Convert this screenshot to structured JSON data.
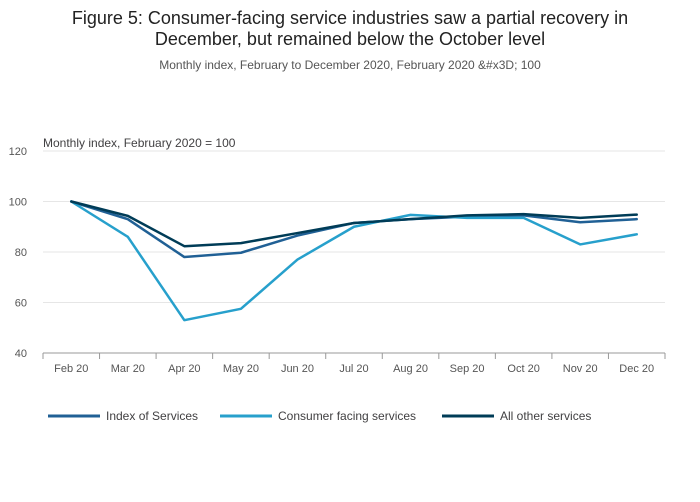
{
  "title_line1": "Figure 5: Consumer-facing service industries saw a partial recovery in",
  "title_line2": "December, but remained below the October level",
  "subtitle": "Monthly index, February to December 2020, February 2020 &#x3D; 100",
  "chart_data": {
    "type": "line",
    "ylabel": "Monthly index, February 2020 = 100",
    "xlabel": "",
    "ylim": [
      40,
      120
    ],
    "yticks": [
      40,
      60,
      80,
      100,
      120
    ],
    "grid": true,
    "legend_position": "bottom",
    "x": [
      "Feb 20",
      "Mar 20",
      "Apr 20",
      "May 20",
      "Jun 20",
      "Jul 20",
      "Aug 20",
      "Sep 20",
      "Oct 20",
      "Nov 20",
      "Dec 20"
    ],
    "series": [
      {
        "name": "Index of Services",
        "color": "#206095",
        "values": [
          100,
          93,
          78,
          79.7,
          86.5,
          91.5,
          93,
          94,
          94.5,
          91.8,
          93
        ]
      },
      {
        "name": "Consumer facing services",
        "color": "#27a0cc",
        "values": [
          100,
          86,
          53,
          57.5,
          77,
          90,
          94.7,
          93.5,
          93.5,
          83,
          87
        ]
      },
      {
        "name": "All other services",
        "color": "#003c57",
        "values": [
          100,
          94.3,
          82.3,
          83.5,
          87.5,
          91.5,
          93,
          94.5,
          95,
          93.5,
          94.8
        ]
      }
    ]
  }
}
